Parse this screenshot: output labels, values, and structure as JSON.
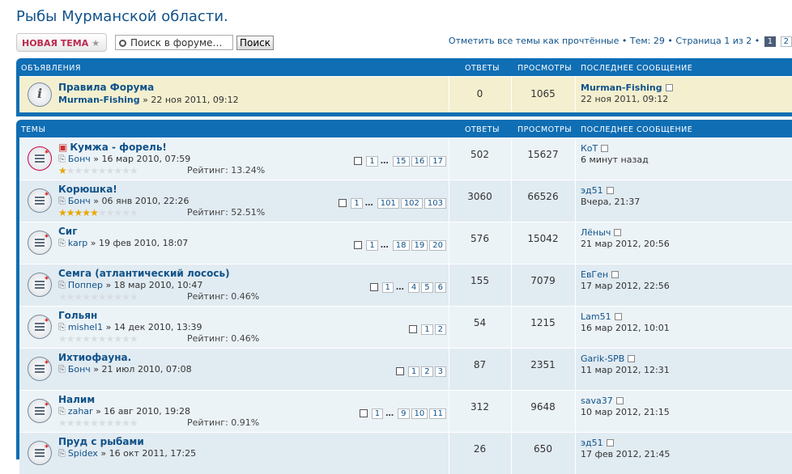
{
  "page": {
    "title": "Рыбы Мурманской области."
  },
  "toolbar": {
    "new_topic": "НОВАЯ ТЕМА",
    "search_placeholder": "Поиск в форуме…",
    "search_button": "Поиск",
    "mark_read": "Отметить все темы как прочтённые",
    "topics_count": "Тем: 29",
    "page_info": "Страница 1 из 2",
    "pages": [
      "1",
      "2"
    ],
    "sep": "•"
  },
  "announcements": {
    "header": {
      "section": "ОБЪЯВЛЕНИЯ",
      "replies": "ОТВЕТЫ",
      "views": "ПРОСМОТРЫ",
      "last": "ПОСЛЕДНЕЕ СООБЩЕНИЕ"
    },
    "rows": [
      {
        "title": "Правила Форума",
        "author": "Murman-Fishing",
        "date": "» 22 ноя 2011, 09:12",
        "replies": "0",
        "views": "1065",
        "last_author": "Murman-Fishing",
        "last_date": "22 ноя 2011, 09:12"
      }
    ]
  },
  "topics": {
    "header": {
      "section": "ТЕМЫ",
      "replies": "ОТВЕТЫ",
      "views": "ПРОСМОТРЫ",
      "last": "ПОСЛЕДНЕЕ СООБЩЕНИЕ"
    },
    "rows": [
      {
        "title": "Кумжа - форель!",
        "author": "Бонч",
        "date": "» 16 мар 2010, 07:59",
        "rating": "Рейтинг: 13.24%",
        "stars": 1,
        "pages": [
          "1",
          "15",
          "16",
          "17"
        ],
        "replies": "502",
        "views": "15627",
        "last_author": "КоТ",
        "last_date": "6 минут назад"
      },
      {
        "title": "Корюшка!",
        "author": "Бонч",
        "date": "» 06 янв 2010, 22:26",
        "rating": "Рейтинг: 52.51%",
        "stars": 5,
        "pages": [
          "1",
          "101",
          "102",
          "103"
        ],
        "replies": "3060",
        "views": "66526",
        "last_author": "эд51",
        "last_date": "Вчера, 21:37"
      },
      {
        "title": "Сиг",
        "author": "karp",
        "date": "» 19 фев 2010, 18:07",
        "rating": "",
        "stars": 0,
        "pages": [
          "1",
          "18",
          "19",
          "20"
        ],
        "replies": "576",
        "views": "15042",
        "last_author": "Лёныч",
        "last_date": "21 мар 2012, 20:56"
      },
      {
        "title": "Семга (атлантический лосось)",
        "author": "Поппер",
        "date": "» 18 мар 2010, 10:47",
        "rating": "Рейтинг: 0.46%",
        "stars": 0,
        "pages": [
          "1",
          "4",
          "5",
          "6"
        ],
        "replies": "155",
        "views": "7079",
        "last_author": "ЕвГен",
        "last_date": "17 мар 2012, 22:56"
      },
      {
        "title": "Гольян",
        "author": "mishel1",
        "date": "» 14 дек 2010, 13:39",
        "rating": "Рейтинг: 0.46%",
        "stars": 0,
        "pages": [
          "1",
          "2"
        ],
        "replies": "54",
        "views": "1215",
        "last_author": "Lam51",
        "last_date": "16 мар 2012, 10:01"
      },
      {
        "title": "Ихтиофауна.",
        "author": "Бонч",
        "date": "» 21 июл 2010, 07:08",
        "rating": "",
        "stars": 0,
        "pages": [
          "1",
          "2",
          "3"
        ],
        "replies": "87",
        "views": "2351",
        "last_author": "Garik-SPB",
        "last_date": "11 мар 2012, 12:31"
      },
      {
        "title": "Налим",
        "author": "zahar",
        "date": "» 16 авг 2010, 19:28",
        "rating": "Рейтинг: 0.91%",
        "stars": 0,
        "pages": [
          "1",
          "9",
          "10",
          "11"
        ],
        "replies": "312",
        "views": "9648",
        "last_author": "sava37",
        "last_date": "10 мар 2012, 21:15"
      },
      {
        "title": "Пруд с рыбами",
        "author": "Spidex",
        "date": "» 16 окт 2011, 17:25",
        "rating": "",
        "stars": 0,
        "pages": [],
        "replies": "26",
        "views": "650",
        "last_author": "эд51",
        "last_date": "17 фев 2012, 21:45"
      }
    ]
  },
  "ellipsis": "…",
  "colors": {
    "header_blue": "#0f6eb4",
    "link": "#105289",
    "announce_bg": "#f3efcf",
    "row_bg": "#ecf3f7",
    "row_alt": "#e1ebf2",
    "new_topic_red": "#bc2a4d"
  }
}
